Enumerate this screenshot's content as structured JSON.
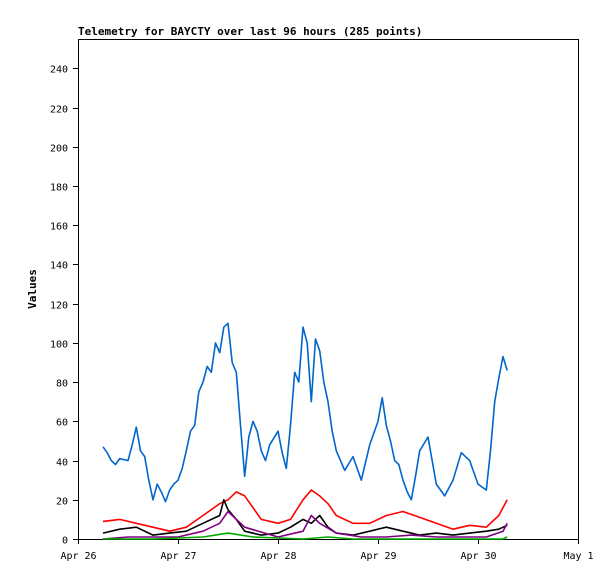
{
  "chart_data": {
    "type": "line",
    "title": "Telemetry for BAYCTY over last 96 hours (285 points)",
    "xlabel": "",
    "ylabel": "Values",
    "x_range": [
      "2026-04-26T00:00",
      "2026-05-01T00:00"
    ],
    "ylim": [
      0,
      255
    ],
    "x_ticks": [
      "Apr 26",
      "Apr 27",
      "Apr 28",
      "Apr 29",
      "Apr 30",
      "May 1"
    ],
    "y_ticks": [
      0,
      20,
      40,
      60,
      80,
      100,
      120,
      140,
      160,
      180,
      200,
      220,
      240
    ],
    "grid": false,
    "legend": "none",
    "series": [
      {
        "color": "#0066cc",
        "x": [
          "2026-04-26T06:00",
          "2026-04-26T07:00",
          "2026-04-26T08:00",
          "2026-04-26T09:00",
          "2026-04-26T10:00",
          "2026-04-26T12:00",
          "2026-04-26T13:00",
          "2026-04-26T14:00",
          "2026-04-26T15:00",
          "2026-04-26T16:00",
          "2026-04-26T17:00",
          "2026-04-26T18:00",
          "2026-04-26T19:00",
          "2026-04-26T20:00",
          "2026-04-26T21:00",
          "2026-04-26T22:00",
          "2026-04-26T23:00",
          "2026-04-27T00:00",
          "2026-04-27T01:00",
          "2026-04-27T02:00",
          "2026-04-27T03:00",
          "2026-04-27T04:00",
          "2026-04-27T05:00",
          "2026-04-27T06:00",
          "2026-04-27T07:00",
          "2026-04-27T08:00",
          "2026-04-27T09:00",
          "2026-04-27T10:00",
          "2026-04-27T11:00",
          "2026-04-27T12:00",
          "2026-04-27T13:00",
          "2026-04-27T14:00",
          "2026-04-27T15:00",
          "2026-04-27T16:00",
          "2026-04-27T17:00",
          "2026-04-27T18:00",
          "2026-04-27T19:00",
          "2026-04-27T20:00",
          "2026-04-27T21:00",
          "2026-04-27T22:00",
          "2026-04-28T00:00",
          "2026-04-28T01:00",
          "2026-04-28T02:00",
          "2026-04-28T03:00",
          "2026-04-28T04:00",
          "2026-04-28T05:00",
          "2026-04-28T06:00",
          "2026-04-28T07:00",
          "2026-04-28T08:00",
          "2026-04-28T09:00",
          "2026-04-28T10:00",
          "2026-04-28T11:00",
          "2026-04-28T12:00",
          "2026-04-28T13:00",
          "2026-04-28T14:00",
          "2026-04-28T16:00",
          "2026-04-28T18:00",
          "2026-04-28T20:00",
          "2026-04-28T22:00",
          "2026-04-29T00:00",
          "2026-04-29T01:00",
          "2026-04-29T02:00",
          "2026-04-29T03:00",
          "2026-04-29T04:00",
          "2026-04-29T05:00",
          "2026-04-29T06:00",
          "2026-04-29T07:00",
          "2026-04-29T08:00",
          "2026-04-29T09:00",
          "2026-04-29T10:00",
          "2026-04-29T12:00",
          "2026-04-29T14:00",
          "2026-04-29T16:00",
          "2026-04-29T18:00",
          "2026-04-29T20:00",
          "2026-04-29T22:00",
          "2026-04-30T00:00",
          "2026-04-30T02:00",
          "2026-04-30T03:00",
          "2026-04-30T04:00",
          "2026-04-30T05:00",
          "2026-04-30T06:00",
          "2026-04-30T07:00"
        ],
        "y": [
          47,
          44,
          40,
          38,
          41,
          40,
          48,
          57,
          45,
          42,
          30,
          20,
          28,
          24,
          19,
          25,
          28,
          30,
          36,
          45,
          55,
          58,
          75,
          80,
          88,
          85,
          100,
          95,
          108,
          110,
          90,
          85,
          58,
          32,
          52,
          60,
          55,
          45,
          40,
          48,
          55,
          44,
          36,
          58,
          85,
          80,
          108,
          100,
          70,
          102,
          96,
          80,
          70,
          55,
          45,
          35,
          42,
          30,
          48,
          60,
          72,
          58,
          50,
          40,
          38,
          30,
          24,
          20,
          32,
          45,
          52,
          28,
          22,
          30,
          44,
          40,
          28,
          25,
          45,
          70,
          82,
          93,
          86
        ]
      },
      {
        "color": "#ff0000",
        "x": [
          "2026-04-26T06:00",
          "2026-04-26T10:00",
          "2026-04-26T14:00",
          "2026-04-26T18:00",
          "2026-04-26T22:00",
          "2026-04-27T02:00",
          "2026-04-27T06:00",
          "2026-04-27T10:00",
          "2026-04-27T12:00",
          "2026-04-27T14:00",
          "2026-04-27T16:00",
          "2026-04-27T20:00",
          "2026-04-28T00:00",
          "2026-04-28T03:00",
          "2026-04-28T06:00",
          "2026-04-28T08:00",
          "2026-04-28T10:00",
          "2026-04-28T12:00",
          "2026-04-28T14:00",
          "2026-04-28T18:00",
          "2026-04-28T22:00",
          "2026-04-29T02:00",
          "2026-04-29T06:00",
          "2026-04-29T10:00",
          "2026-04-29T14:00",
          "2026-04-29T18:00",
          "2026-04-29T22:00",
          "2026-04-30T02:00",
          "2026-04-30T05:00",
          "2026-04-30T07:00"
        ],
        "y": [
          9,
          10,
          8,
          6,
          4,
          6,
          12,
          18,
          20,
          24,
          22,
          10,
          8,
          10,
          20,
          25,
          22,
          18,
          12,
          8,
          8,
          12,
          14,
          11,
          8,
          5,
          7,
          6,
          12,
          20
        ]
      },
      {
        "color": "#000000",
        "x": [
          "2026-04-26T06:00",
          "2026-04-26T10:00",
          "2026-04-26T14:00",
          "2026-04-26T18:00",
          "2026-04-26T22:00",
          "2026-04-27T02:00",
          "2026-04-27T06:00",
          "2026-04-27T10:00",
          "2026-04-27T11:00",
          "2026-04-27T12:00",
          "2026-04-27T14:00",
          "2026-04-27T16:00",
          "2026-04-27T20:00",
          "2026-04-28T00:00",
          "2026-04-28T03:00",
          "2026-04-28T06:00",
          "2026-04-28T08:00",
          "2026-04-28T10:00",
          "2026-04-28T12:00",
          "2026-04-28T14:00",
          "2026-04-28T18:00",
          "2026-04-28T22:00",
          "2026-04-29T02:00",
          "2026-04-29T06:00",
          "2026-04-29T10:00",
          "2026-04-29T14:00",
          "2026-04-29T18:00",
          "2026-04-29T22:00",
          "2026-04-30T02:00",
          "2026-04-30T05:00",
          "2026-04-30T07:00"
        ],
        "y": [
          3,
          5,
          6,
          2,
          3,
          4,
          8,
          12,
          20,
          15,
          10,
          4,
          2,
          3,
          6,
          10,
          8,
          12,
          6,
          3,
          2,
          4,
          6,
          4,
          2,
          3,
          2,
          3,
          4,
          5,
          7
        ]
      },
      {
        "color": "#800080",
        "x": [
          "2026-04-26T06:00",
          "2026-04-26T12:00",
          "2026-04-26T18:00",
          "2026-04-27T00:00",
          "2026-04-27T06:00",
          "2026-04-27T10:00",
          "2026-04-27T12:00",
          "2026-04-27T16:00",
          "2026-04-28T00:00",
          "2026-04-28T06:00",
          "2026-04-28T08:00",
          "2026-04-28T10:00",
          "2026-04-28T14:00",
          "2026-04-28T20:00",
          "2026-04-29T02:00",
          "2026-04-29T08:00",
          "2026-04-29T14:00",
          "2026-04-29T20:00",
          "2026-04-30T02:00",
          "2026-04-30T06:00",
          "2026-04-30T07:00"
        ],
        "y": [
          0,
          1,
          1,
          1,
          4,
          8,
          14,
          6,
          1,
          4,
          12,
          8,
          3,
          1,
          1,
          2,
          1,
          1,
          1,
          4,
          8
        ]
      },
      {
        "color": "#00aa00",
        "x": [
          "2026-04-26T06:00",
          "2026-04-26T18:00",
          "2026-04-27T06:00",
          "2026-04-27T12:00",
          "2026-04-27T18:00",
          "2026-04-28T06:00",
          "2026-04-28T12:00",
          "2026-04-28T18:00",
          "2026-04-29T06:00",
          "2026-04-29T18:00",
          "2026-04-30T06:00",
          "2026-04-30T07:00"
        ],
        "y": [
          0,
          0,
          1,
          3,
          1,
          0,
          1,
          0,
          0,
          0,
          0,
          1
        ]
      }
    ]
  }
}
